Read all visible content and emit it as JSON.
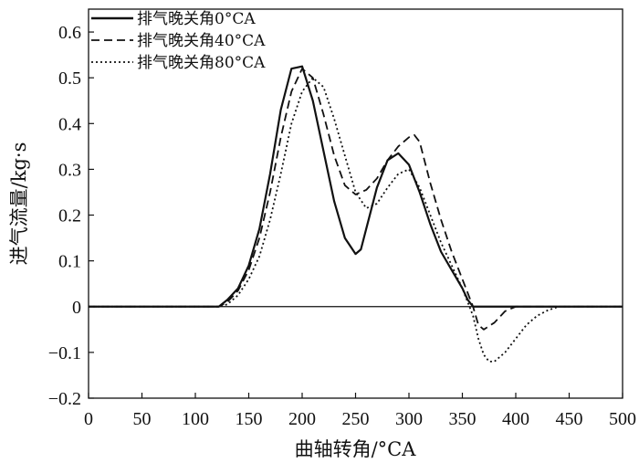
{
  "chart_data": {
    "type": "line",
    "title": "",
    "xlabel": "曲轴转角/°CA",
    "ylabel": "进气流量/kg·s",
    "xlim": [
      0,
      500
    ],
    "ylim": [
      -0.2,
      0.65
    ],
    "xticks": [
      0,
      50,
      100,
      150,
      200,
      250,
      300,
      350,
      400,
      450,
      500
    ],
    "yticks": [
      -0.2,
      -0.1,
      0,
      0.1,
      0.2,
      0.3,
      0.4,
      0.5,
      0.6
    ],
    "yticklabels": [
      "−0.2",
      "−0.1",
      "0",
      "0.1",
      "0.2",
      "0.3",
      "0.4",
      "0.5",
      "0.6"
    ],
    "grid": false,
    "legend_position": "top-left",
    "series": [
      {
        "name": "排气晚关角0°CA",
        "style": "solid",
        "color": "#111111",
        "x": [
          0,
          122,
          130,
          140,
          150,
          160,
          170,
          180,
          190,
          200,
          210,
          220,
          230,
          240,
          250,
          255,
          260,
          270,
          280,
          290,
          300,
          310,
          320,
          330,
          340,
          350,
          355,
          360,
          370,
          400,
          450,
          500
        ],
        "y": [
          0,
          0,
          0.015,
          0.04,
          0.09,
          0.17,
          0.29,
          0.43,
          0.52,
          0.525,
          0.45,
          0.34,
          0.23,
          0.15,
          0.115,
          0.125,
          0.17,
          0.26,
          0.32,
          0.335,
          0.31,
          0.25,
          0.18,
          0.12,
          0.08,
          0.04,
          0.015,
          0,
          0,
          0,
          0,
          0
        ]
      },
      {
        "name": "排气晚关角40°CA",
        "style": "dashed",
        "color": "#111111",
        "x": [
          0,
          122,
          130,
          140,
          150,
          160,
          170,
          180,
          190,
          200,
          210,
          220,
          230,
          240,
          250,
          260,
          270,
          280,
          290,
          300,
          305,
          310,
          320,
          330,
          340,
          350,
          360,
          365,
          370,
          380,
          390,
          400,
          450,
          500
        ],
        "y": [
          0,
          0,
          0.01,
          0.035,
          0.08,
          0.15,
          0.25,
          0.37,
          0.47,
          0.52,
          0.5,
          0.42,
          0.33,
          0.265,
          0.245,
          0.255,
          0.28,
          0.32,
          0.35,
          0.37,
          0.375,
          0.36,
          0.27,
          0.19,
          0.12,
          0.06,
          0,
          -0.04,
          -0.05,
          -0.035,
          -0.01,
          0,
          0,
          0
        ]
      },
      {
        "name": "排气晚关角80°CA",
        "style": "dotted",
        "color": "#111111",
        "x": [
          0,
          122,
          130,
          140,
          150,
          160,
          170,
          180,
          190,
          200,
          210,
          220,
          230,
          240,
          250,
          260,
          270,
          280,
          290,
          300,
          310,
          320,
          330,
          340,
          350,
          360,
          365,
          370,
          375,
          380,
          390,
          400,
          410,
          420,
          430,
          440,
          450,
          500
        ],
        "y": [
          0,
          0,
          0.005,
          0.025,
          0.06,
          0.11,
          0.19,
          0.29,
          0.4,
          0.47,
          0.5,
          0.48,
          0.41,
          0.33,
          0.25,
          0.215,
          0.225,
          0.26,
          0.29,
          0.3,
          0.26,
          0.2,
          0.14,
          0.09,
          0.04,
          -0.02,
          -0.07,
          -0.105,
          -0.12,
          -0.12,
          -0.1,
          -0.07,
          -0.04,
          -0.02,
          -0.008,
          0,
          0,
          0
        ]
      }
    ]
  }
}
